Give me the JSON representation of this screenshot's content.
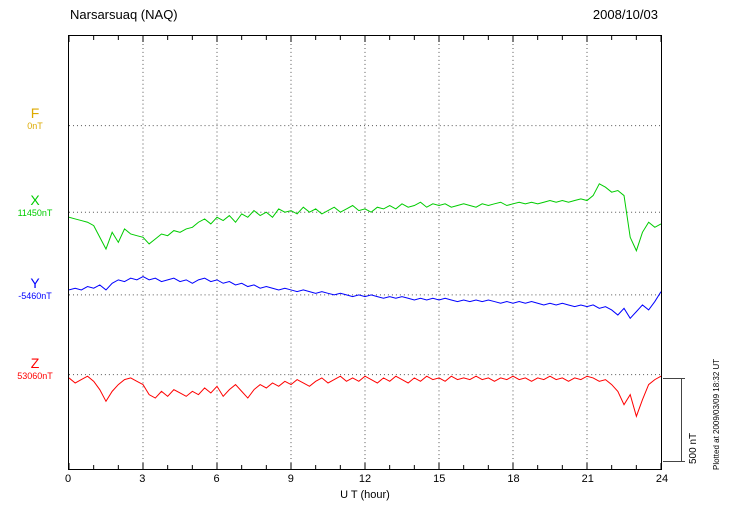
{
  "header": {
    "title": "Narsarsuaq (NAQ)",
    "date": "2008/10/03"
  },
  "axis": {
    "xlabel": "U T (hour)",
    "x_ticks": [
      0,
      3,
      6,
      9,
      12,
      15,
      18,
      21,
      24
    ]
  },
  "scalebar": {
    "label": "500 nT",
    "nT": 500
  },
  "footer_note": "Plotted at 2009/03/09 18:32 UT",
  "chart_data": {
    "type": "line",
    "title": "Narsarsuaq (NAQ) magnetogram",
    "date": "2008/10/03",
    "xlabel": "U T (hour)",
    "x_range": [
      0,
      24
    ],
    "x_step_hours": 0.25,
    "x_ticks": [
      0,
      3,
      6,
      9,
      12,
      15,
      18,
      21,
      24
    ],
    "scale_nT": 500,
    "scalebar_frac": 0.193,
    "grid": "dotted",
    "values_unit": "nT offset from each trace baseline",
    "series": [
      {
        "name": "F",
        "color": "#ddaa00",
        "baseline_label": "0nT",
        "baseline_frac": 0.207,
        "values": []
      },
      {
        "name": "X",
        "color": "#00cc00",
        "baseline_label": "11450nT",
        "baseline_frac": 0.407,
        "values": [
          -30,
          -40,
          -50,
          -60,
          -80,
          -150,
          -220,
          -120,
          -180,
          -100,
          -130,
          -140,
          -150,
          -190,
          -160,
          -130,
          -140,
          -110,
          -120,
          -100,
          -90,
          -60,
          -40,
          -70,
          -30,
          -50,
          -20,
          -60,
          -10,
          -30,
          10,
          -20,
          0,
          -30,
          20,
          0,
          10,
          -10,
          30,
          0,
          20,
          -10,
          10,
          30,
          0,
          20,
          40,
          10,
          20,
          0,
          30,
          20,
          40,
          20,
          50,
          30,
          40,
          60,
          30,
          50,
          40,
          50,
          30,
          40,
          50,
          40,
          30,
          50,
          40,
          50,
          60,
          40,
          50,
          60,
          50,
          60,
          50,
          60,
          70,
          60,
          70,
          60,
          70,
          80,
          70,
          100,
          170,
          150,
          120,
          130,
          100,
          -150,
          -230,
          -120,
          -60,
          -90,
          -70
        ]
      },
      {
        "name": "Y",
        "color": "#0000ff",
        "baseline_label": "-5460nT",
        "baseline_frac": 0.598,
        "values": [
          30,
          40,
          30,
          50,
          40,
          60,
          30,
          70,
          90,
          80,
          100,
          90,
          110,
          90,
          100,
          80,
          90,
          100,
          80,
          90,
          70,
          90,
          100,
          80,
          90,
          70,
          80,
          60,
          70,
          50,
          60,
          40,
          50,
          40,
          30,
          40,
          30,
          20,
          30,
          20,
          10,
          20,
          10,
          0,
          10,
          0,
          -10,
          0,
          -10,
          0,
          -10,
          -20,
          -10,
          -20,
          -10,
          -20,
          -30,
          -20,
          -30,
          -20,
          -30,
          -20,
          -30,
          -40,
          -30,
          -40,
          -30,
          -40,
          -30,
          -40,
          -50,
          -40,
          -50,
          -40,
          -50,
          -40,
          -50,
          -60,
          -50,
          -60,
          -50,
          -60,
          -70,
          -60,
          -70,
          -60,
          -80,
          -70,
          -90,
          -120,
          -80,
          -140,
          -100,
          -60,
          -90,
          -40,
          20
        ]
      },
      {
        "name": "Z",
        "color": "#ff0000",
        "baseline_label": "53060nT",
        "baseline_frac": 0.782,
        "values": [
          -20,
          -50,
          -30,
          -10,
          -40,
          -90,
          -160,
          -100,
          -60,
          -30,
          -20,
          -40,
          -60,
          -120,
          -140,
          -100,
          -130,
          -90,
          -110,
          -130,
          -100,
          -120,
          -80,
          -110,
          -70,
          -130,
          -90,
          -60,
          -100,
          -140,
          -90,
          -60,
          -80,
          -50,
          -70,
          -40,
          -60,
          -30,
          -50,
          -70,
          -40,
          -20,
          -50,
          -30,
          -10,
          -40,
          -20,
          -40,
          -10,
          -30,
          -50,
          -20,
          -40,
          -10,
          -30,
          -50,
          -20,
          -40,
          -10,
          -30,
          -20,
          -40,
          -10,
          -30,
          -20,
          -30,
          -10,
          -30,
          -20,
          -40,
          -20,
          -30,
          -10,
          -30,
          -20,
          -40,
          -20,
          -30,
          -10,
          -30,
          -20,
          -40,
          -20,
          -30,
          -10,
          -20,
          -40,
          -30,
          -60,
          -100,
          -180,
          -120,
          -250,
          -150,
          -60,
          -30,
          -10
        ]
      }
    ]
  }
}
